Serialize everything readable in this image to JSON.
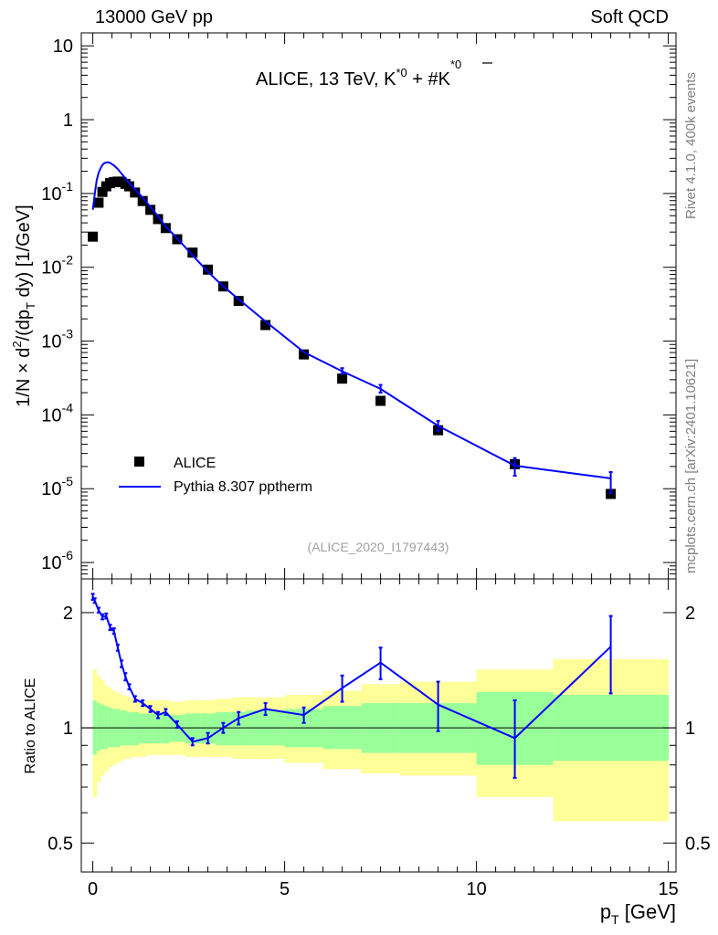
{
  "header": {
    "left": "13000 GeV pp",
    "right": "Soft QCD"
  },
  "side_labels": {
    "rivet": "Rivet 4.1.0,  400k events",
    "mcplots": "mcplots.cern.ch [arXiv:2401.10621]"
  },
  "chart_data": [
    {
      "type": "scatter",
      "panel": "main",
      "title": "ALICE, 13 TeV, K*0 + K̄*0",
      "title_parts": {
        "main": "ALICE, 13 TeV, K",
        "sup1": "*0",
        "mid": " + #K",
        "sup2": "*0"
      },
      "analysis_id": "(ALICE_2020_I1797443)",
      "ylabel": "1/N × d²/(dp_T dy) [1/GeV]",
      "ylabel_parts": {
        "a": "1/N",
        "b": " × d",
        "c": "2",
        "d": "/(dp",
        "e": "T",
        "f": " dy) [1/GeV]"
      },
      "yscale": "log",
      "ylim": [
        6e-07,
        15
      ],
      "xlim": [
        -0.3,
        15.2
      ],
      "y_ticks": [
        {
          "value": 1e-06,
          "base": "10",
          "exp": "-6"
        },
        {
          "value": 1e-05,
          "base": "10",
          "exp": "-5"
        },
        {
          "value": 0.0001,
          "base": "10",
          "exp": "-4"
        },
        {
          "value": 0.001,
          "base": "10",
          "exp": "-3"
        },
        {
          "value": 0.01,
          "base": "10",
          "exp": "-2"
        },
        {
          "value": 0.1,
          "base": "10",
          "exp": "-1"
        },
        {
          "value": 1,
          "base": "1",
          "exp": ""
        },
        {
          "value": 10,
          "base": "10",
          "exp": ""
        }
      ],
      "legend": {
        "placement": "bottom-left",
        "entries": [
          "ALICE",
          "Pythia 8.307 pptherm"
        ]
      },
      "series": [
        {
          "name": "ALICE",
          "style": "black-squares",
          "x": [
            0.0,
            0.15,
            0.25,
            0.35,
            0.45,
            0.55,
            0.65,
            0.75,
            0.85,
            0.95,
            1.1,
            1.3,
            1.5,
            1.7,
            1.9,
            2.2,
            2.6,
            3.0,
            3.4,
            3.8,
            4.5,
            5.5,
            6.5,
            7.5,
            9.0,
            11.0,
            13.5
          ],
          "y": [
            0.026,
            0.075,
            0.105,
            0.125,
            0.138,
            0.143,
            0.145,
            0.143,
            0.135,
            0.125,
            0.103,
            0.079,
            0.06,
            0.045,
            0.034,
            0.024,
            0.0158,
            0.0093,
            0.0055,
            0.0035,
            0.00165,
            0.00066,
            0.00031,
            0.000155,
            6.2e-05,
            2.15e-05,
            8.5e-06
          ]
        },
        {
          "name": "Pythia 8.307 pptherm",
          "style": "blue-line",
          "color": "#0000ff",
          "x": [
            0.0,
            0.05,
            0.1,
            0.15,
            0.2,
            0.25,
            0.3,
            0.35,
            0.4,
            0.45,
            0.55,
            0.65,
            0.75,
            0.85,
            0.95,
            1.1,
            1.3,
            1.5,
            1.7,
            1.9,
            2.2,
            2.6,
            3.0,
            3.4,
            3.8,
            4.5,
            5.5,
            6.5,
            7.5,
            9.0,
            11.0,
            13.5
          ],
          "y": [
            0.06,
            0.098,
            0.15,
            0.19,
            0.218,
            0.244,
            0.258,
            0.263,
            0.264,
            0.26,
            0.24,
            0.215,
            0.185,
            0.16,
            0.137,
            0.114,
            0.088,
            0.066,
            0.049,
            0.0357,
            0.0247,
            0.0145,
            0.0087,
            0.0055,
            0.0037,
            0.00185,
            0.00071,
            0.00039,
            0.000225,
            7.1e-05,
            2.05e-05,
            1.38e-05
          ],
          "yerr_low": [
            0.0,
            0.0,
            0.0,
            0.0,
            0.0,
            0.0,
            0.0,
            0.0,
            0.0,
            0.0,
            0.0,
            0.0,
            0.0,
            0.0,
            0.0,
            0.0,
            0.0,
            0.0,
            0.0,
            0.0,
            0.0,
            0.0,
            0.0,
            0.0,
            0.0,
            0.0,
            0.0,
            3e-05,
            2.5e-05,
            1.1e-05,
            5.5e-06,
            5e-06
          ],
          "yerr_high": [
            0.0,
            0.0,
            0.0,
            0.0,
            0.0,
            0.0,
            0.0,
            0.0,
            0.0,
            0.0,
            0.0,
            0.0,
            0.0,
            0.0,
            0.0,
            0.0,
            0.0,
            0.0,
            0.0,
            0.0,
            0.0,
            0.0,
            0.0,
            0.0,
            0.0,
            0.0,
            0.0,
            4e-05,
            3e-05,
            1.2e-05,
            5.5e-06,
            3e-06
          ]
        }
      ]
    },
    {
      "type": "line",
      "panel": "ratio",
      "ylabel": "Ratio to ALICE",
      "xlabel": "p_T [GeV]",
      "xlabel_parts": {
        "a": "p",
        "b": "T",
        "c": " [GeV]"
      },
      "yscale": "log",
      "ylim": [
        0.42,
        2.45
      ],
      "xlim": [
        -0.3,
        15.2
      ],
      "x_ticks": [
        0,
        5,
        10,
        15
      ],
      "x_tick_labels": [
        "0",
        "5",
        "10",
        "15"
      ],
      "y_ticks": [
        0.5,
        1,
        2
      ],
      "y_tick_labels": [
        "0.5",
        "1",
        "2"
      ],
      "reference_line": 1,
      "uncertainty_bands": {
        "bin_edges": [
          0.0,
          0.1,
          0.2,
          0.3,
          0.4,
          0.5,
          0.6,
          0.7,
          0.8,
          0.9,
          1.0,
          1.2,
          1.4,
          1.6,
          1.8,
          2.0,
          2.4,
          2.8,
          3.2,
          3.6,
          4.0,
          5.0,
          6.0,
          7.0,
          8.0,
          10.0,
          12.0,
          15.0
        ],
        "stat_sys_low": [
          0.85,
          0.87,
          0.88,
          0.88,
          0.89,
          0.89,
          0.89,
          0.9,
          0.9,
          0.9,
          0.9,
          0.91,
          0.91,
          0.91,
          0.91,
          0.92,
          0.91,
          0.91,
          0.9,
          0.9,
          0.9,
          0.89,
          0.88,
          0.86,
          0.86,
          0.8,
          0.82
        ],
        "stat_sys_high": [
          1.18,
          1.16,
          1.15,
          1.14,
          1.13,
          1.12,
          1.12,
          1.11,
          1.11,
          1.1,
          1.1,
          1.09,
          1.09,
          1.09,
          1.09,
          1.08,
          1.09,
          1.09,
          1.1,
          1.1,
          1.11,
          1.12,
          1.14,
          1.16,
          1.16,
          1.24,
          1.22
        ],
        "total_low": [
          0.66,
          0.72,
          0.75,
          0.77,
          0.79,
          0.8,
          0.81,
          0.82,
          0.83,
          0.83,
          0.84,
          0.84,
          0.85,
          0.85,
          0.85,
          0.85,
          0.84,
          0.84,
          0.84,
          0.83,
          0.83,
          0.81,
          0.78,
          0.76,
          0.75,
          0.66,
          0.57
        ],
        "total_high": [
          1.42,
          1.37,
          1.33,
          1.29,
          1.27,
          1.25,
          1.24,
          1.22,
          1.21,
          1.2,
          1.19,
          1.18,
          1.18,
          1.18,
          1.18,
          1.17,
          1.18,
          1.18,
          1.19,
          1.2,
          1.2,
          1.22,
          1.25,
          1.3,
          1.32,
          1.42,
          1.51
        ],
        "colors": {
          "inner": "#99ff99",
          "outer": "#ffff99"
        }
      },
      "series": [
        {
          "name": "Pythia 8.307 pptherm / ALICE",
          "color": "#0000ff",
          "x": [
            0.0,
            0.05,
            0.15,
            0.25,
            0.35,
            0.45,
            0.55,
            0.65,
            0.75,
            0.85,
            0.95,
            1.1,
            1.3,
            1.5,
            1.7,
            1.9,
            2.2,
            2.6,
            3.0,
            3.4,
            3.8,
            4.5,
            5.5,
            6.5,
            7.5,
            9.0,
            11.0,
            13.5
          ],
          "y": [
            2.2,
            2.15,
            2.03,
            1.95,
            1.96,
            1.83,
            1.79,
            1.62,
            1.47,
            1.36,
            1.28,
            1.19,
            1.16,
            1.12,
            1.08,
            1.1,
            1.02,
            0.92,
            0.94,
            1.0,
            1.06,
            1.12,
            1.08,
            1.27,
            1.48,
            1.15,
            0.94,
            1.63
          ],
          "yerr_low": [
            0.04,
            0.03,
            0.03,
            0.03,
            0.03,
            0.03,
            0.03,
            0.03,
            0.03,
            0.03,
            0.02,
            0.02,
            0.02,
            0.02,
            0.02,
            0.02,
            0.02,
            0.02,
            0.03,
            0.03,
            0.04,
            0.04,
            0.05,
            0.1,
            0.14,
            0.17,
            0.2,
            0.4
          ],
          "yerr_high": [
            0.04,
            0.03,
            0.03,
            0.03,
            0.03,
            0.03,
            0.03,
            0.03,
            0.03,
            0.03,
            0.02,
            0.02,
            0.02,
            0.02,
            0.02,
            0.02,
            0.02,
            0.02,
            0.03,
            0.03,
            0.04,
            0.04,
            0.05,
            0.1,
            0.14,
            0.17,
            0.24,
            0.33
          ]
        }
      ]
    }
  ]
}
